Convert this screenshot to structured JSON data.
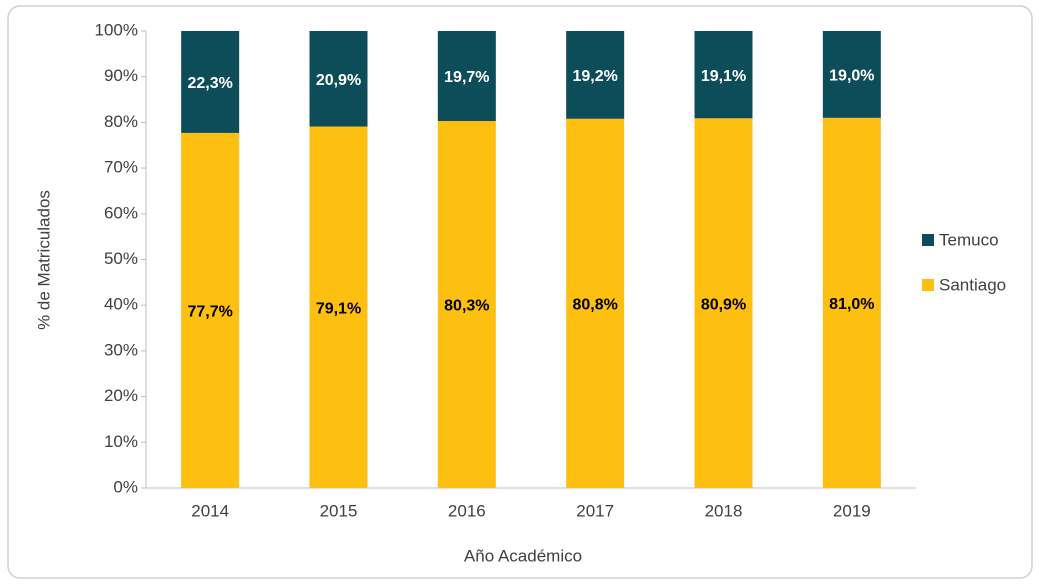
{
  "chart_data": {
    "type": "stacked_bar",
    "x_label": "Año Académico",
    "y_label": "% de Matriculados",
    "categories": [
      "2014",
      "2015",
      "2016",
      "2017",
      "2018",
      "2019"
    ],
    "series": [
      {
        "name": "Santiago",
        "color": "#fdc010",
        "values": [
          77.7,
          79.1,
          80.3,
          80.8,
          80.9,
          81.0
        ],
        "value_labels": [
          "77,7%",
          "79,1%",
          "80,3%",
          "80,8%",
          "80,9%",
          "81,0%"
        ]
      },
      {
        "name": "Temuco",
        "color": "#0d4d59",
        "values": [
          22.3,
          20.9,
          19.7,
          19.2,
          19.1,
          19.0
        ],
        "value_labels": [
          "22,3%",
          "20,9%",
          "19,7%",
          "19,2%",
          "19,1%",
          "19,0%"
        ]
      }
    ],
    "ylim": [
      0,
      100
    ],
    "yticks": [
      {
        "value": 0,
        "label": "0%"
      },
      {
        "value": 10,
        "label": "10%"
      },
      {
        "value": 20,
        "label": "20%"
      },
      {
        "value": 30,
        "label": "30%"
      },
      {
        "value": 40,
        "label": "40%"
      },
      {
        "value": 50,
        "label": "50%"
      },
      {
        "value": 60,
        "label": "60%"
      },
      {
        "value": 70,
        "label": "70%"
      },
      {
        "value": 80,
        "label": "80%"
      },
      {
        "value": 90,
        "label": "90%"
      },
      {
        "value": 100,
        "label": "100%"
      }
    ],
    "legend": "right"
  }
}
